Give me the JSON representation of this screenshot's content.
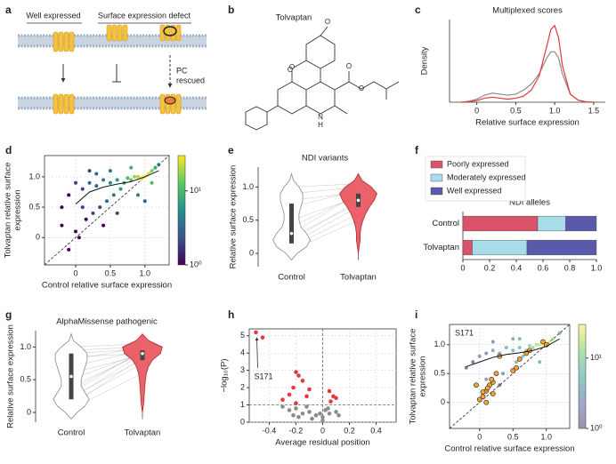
{
  "panel_labels": [
    "a",
    "b",
    "c",
    "d",
    "e",
    "f",
    "g",
    "h",
    "i"
  ],
  "panel_a": {
    "labels": [
      "Well expressed",
      "Surface expression defect"
    ],
    "pc_rescued": [
      "PC",
      "rescued"
    ]
  },
  "panel_b": {
    "title": "Tolvaptan",
    "atoms": [
      "O",
      "O",
      "O",
      "O",
      "O",
      "N",
      "H"
    ]
  },
  "chart_data": [
    {
      "type": "line",
      "title": "Multiplexed scores",
      "xlabel": "Relative surface expression",
      "ylabel": "Density",
      "x": [
        -0.2,
        -0.1,
        0,
        0.1,
        0.2,
        0.3,
        0.4,
        0.5,
        0.6,
        0.7,
        0.8,
        0.9,
        0.95,
        1.0,
        1.05,
        1.1,
        1.2,
        1.3,
        1.4,
        1.5
      ],
      "series": [
        {
          "color": "#8a8a8a",
          "values": [
            0,
            0.05,
            0.15,
            0.35,
            0.45,
            0.4,
            0.35,
            0.4,
            0.6,
            0.9,
            1.4,
            2.2,
            2.5,
            2.5,
            2.2,
            1.4,
            0.4,
            0.1,
            0.02,
            0
          ]
        },
        {
          "color": "#e0383a",
          "values": [
            0,
            0.02,
            0.08,
            0.2,
            0.25,
            0.2,
            0.15,
            0.2,
            0.3,
            0.6,
            1.3,
            2.8,
            3.6,
            3.8,
            3.2,
            1.8,
            0.4,
            0.1,
            0.02,
            0
          ]
        }
      ],
      "xlim": [
        -0.35,
        1.65
      ],
      "ylim": [
        0,
        4.1
      ],
      "xticks": [
        0,
        0.5,
        {
          "value": 1,
          "label": "1.0"
        },
        1.5
      ]
    },
    {
      "type": "scatter",
      "xlabel": "Control relative surface expression",
      "ylabel": [
        "Tolvaptan relative surface",
        "expression"
      ],
      "series": [
        {
          "x": [
            0,
            -0.2,
            0.1,
            0.2,
            0.3,
            0.4,
            0.5,
            0.6,
            0.7,
            0.8,
            0.9,
            1.0,
            1.05,
            0.95,
            1.1,
            1.15,
            0.85,
            0.75,
            0.65,
            0.55,
            0.45,
            0.35,
            0.25,
            0.15,
            0.05,
            -0.1,
            0.2,
            0,
            -0.1,
            0.5,
            0.3,
            1.2,
            1.0,
            0.9,
            0.1,
            0.6,
            0.4,
            -0.2,
            0.8,
            1.1
          ],
          "y": [
            0.1,
            0.5,
            0.8,
            0.9,
            0.85,
            0.95,
            0.9,
            0.95,
            0.9,
            0.95,
            1.0,
            1.0,
            1.05,
            0.98,
            1.1,
            1.15,
            1.0,
            0.98,
            0.8,
            0.7,
            0.6,
            0.5,
            0.4,
            0.3,
            0,
            -0.2,
            1.1,
            0.9,
            0.7,
            1.1,
            1.05,
            1.2,
            0.6,
            0.7,
            0.5,
            0.4,
            0.2,
            0.2,
            1.15,
            0.9
          ],
          "density": [
            1,
            1,
            2,
            3,
            3,
            4,
            5,
            6,
            8,
            12,
            20,
            30,
            25,
            28,
            15,
            8,
            18,
            10,
            6,
            4,
            3,
            2,
            2,
            1,
            1,
            1,
            2,
            2,
            1,
            4,
            3,
            4,
            3,
            4,
            2,
            2,
            1,
            1,
            8,
            10
          ]
        }
      ],
      "trend": {
        "x": [
          0,
          0.2,
          0.4,
          0.6,
          0.8,
          1.0,
          1.2
        ],
        "y": [
          0.55,
          0.75,
          0.83,
          0.88,
          0.92,
          1.0,
          1.1
        ]
      },
      "diagonal": true,
      "grid": true,
      "xlim": [
        -0.45,
        1.35
      ],
      "ylim": [
        -0.45,
        1.35
      ],
      "xticks": [
        0,
        0.5,
        {
          "value": 1,
          "label": "1.0"
        }
      ],
      "yticks": [
        0,
        0.5,
        {
          "value": 1,
          "label": "1.0"
        }
      ],
      "clim": [
        1,
        30
      ],
      "cticks": [
        {
          "value": 1,
          "label": "10⁰"
        },
        {
          "value": 10,
          "label": "10¹"
        }
      ]
    },
    {
      "type": "violin",
      "title": "NDI variants",
      "ylabel": "Relative surface expression",
      "categories": [
        "Control",
        "Tolvaptan"
      ],
      "violins": [
        {
          "color": "#ffffff",
          "edgecolor": "#8a8a8a",
          "y": [
            -0.1,
            0,
            0.1,
            0.2,
            0.3,
            0.4,
            0.5,
            0.6,
            0.7,
            0.8,
            0.9,
            1.0,
            1.1,
            1.2
          ],
          "width": [
            0,
            0.3,
            0.8,
            1.0,
            0.8,
            0.5,
            0.4,
            0.4,
            0.5,
            0.6,
            0.6,
            0.4,
            0.1,
            0
          ],
          "box": [
            0.15,
            0.3,
            0.75
          ]
        },
        {
          "color": "#e8525a",
          "edgecolor": "#b02a30",
          "y": [
            -0.1,
            0,
            0.1,
            0.2,
            0.3,
            0.4,
            0.5,
            0.6,
            0.7,
            0.8,
            0.9,
            1.0,
            1.1,
            1.2
          ],
          "width": [
            0,
            0,
            0.05,
            0.1,
            0.1,
            0.15,
            0.25,
            0.4,
            0.6,
            0.85,
            1.0,
            0.7,
            0.2,
            0
          ],
          "box": [
            0.7,
            0.8,
            0.9
          ]
        }
      ],
      "pairs": [
        [
          0.1,
          0.2,
          0.25,
          0.3,
          0.5,
          0.7,
          0.9,
          0.15,
          0.4,
          0.8,
          1.0,
          0.05
        ],
        [
          0.6,
          0.8,
          0.75,
          0.9,
          0.85,
          0.95,
          1.0,
          0.7,
          0.88,
          0.92,
          1.05,
          0.5
        ]
      ],
      "ylim": [
        -0.2,
        1.3
      ],
      "yticks": [
        0,
        0.5,
        {
          "value": 1,
          "label": "1.0"
        }
      ]
    },
    {
      "type": "barh",
      "title": "NDI alleles",
      "categories": [
        "Control",
        "Tolvaptan"
      ],
      "series": [
        {
          "name": "Poorly expressed",
          "color": "#d9546a",
          "values": [
            0.56,
            0.07
          ]
        },
        {
          "name": "Moderately expressed",
          "color": "#a8dce8",
          "values": [
            0.21,
            0.41
          ]
        },
        {
          "name": "Well expressed",
          "color": "#5a5aac",
          "values": [
            0.23,
            0.52
          ]
        }
      ],
      "xlim": [
        0,
        1
      ],
      "xticks": [
        0,
        0.2,
        0.4,
        0.6,
        0.8,
        {
          "value": 1,
          "label": "1.0"
        }
      ]
    },
    {
      "type": "violin",
      "title": "AlphaMissense pathogenic",
      "ylabel": "Relative surface expression",
      "categories": [
        "Control",
        "Tolvaptan"
      ],
      "violins": [
        {
          "color": "#ffffff",
          "edgecolor": "#8a8a8a",
          "y": [
            -0.1,
            0,
            0.1,
            0.2,
            0.3,
            0.4,
            0.5,
            0.6,
            0.7,
            0.8,
            0.9,
            1.0,
            1.1,
            1.2
          ],
          "width": [
            0,
            0.3,
            0.7,
            0.9,
            0.7,
            0.5,
            0.5,
            0.6,
            0.7,
            0.8,
            0.8,
            0.5,
            0.1,
            0
          ],
          "box": [
            0.2,
            0.55,
            0.9
          ]
        },
        {
          "color": "#e8525a",
          "edgecolor": "#b02a30",
          "y": [
            -0.1,
            0,
            0.1,
            0.2,
            0.3,
            0.4,
            0.5,
            0.6,
            0.7,
            0.8,
            0.9,
            1.0,
            1.1,
            1.2
          ],
          "width": [
            0,
            0,
            0.05,
            0.08,
            0.1,
            0.12,
            0.15,
            0.2,
            0.3,
            0.5,
            0.9,
            1.0,
            0.3,
            0
          ],
          "box": [
            0.8,
            0.9,
            0.95
          ]
        }
      ],
      "pairs": [
        [
          0.05,
          0.1,
          0.2,
          0.25,
          0.3,
          0.4,
          0.5,
          0.6,
          0.7,
          0.8,
          0.9,
          1.0,
          0.15,
          0.35,
          0.85,
          0.95
        ],
        [
          0.6,
          0.85,
          0.9,
          0.8,
          0.95,
          0.9,
          0.92,
          0.88,
          0.95,
          1.0,
          0.97,
          1.05,
          0.75,
          0.93,
          0.9,
          1.0
        ]
      ],
      "ylim": [
        -0.15,
        1.25
      ],
      "yticks": [
        0,
        0.5,
        {
          "value": 1,
          "label": "1.0"
        }
      ]
    },
    {
      "type": "volcano",
      "xlabel": "Average residual position",
      "ylabel": "−log₁₀(P)",
      "annotation": "S171",
      "series": [
        {
          "color": "#8c8c8c",
          "x": [
            -0.3,
            -0.25,
            -0.2,
            -0.15,
            -0.1,
            -0.05,
            0,
            0.02,
            0.05,
            0.1,
            -0.18,
            -0.08,
            0,
            0.12,
            -0.12,
            -0.22,
            0.04,
            -0.02
          ],
          "y": [
            0.9,
            0.7,
            0.8,
            0.5,
            0.6,
            0.4,
            0.3,
            0.7,
            0.5,
            0.6,
            0.3,
            0.2,
            0.1,
            0.4,
            0.9,
            0.4,
            0.8,
            0.5
          ]
        },
        {
          "color": "#e8383e",
          "x": [
            -0.5,
            -0.45,
            -0.2,
            -0.18,
            -0.15,
            -0.22,
            -0.1,
            -0.25,
            -0.12,
            0.05,
            0.08,
            0.1,
            0.06,
            -0.3,
            -0.2
          ],
          "y": [
            5.2,
            4.9,
            2.9,
            2.7,
            2.4,
            2,
            1.9,
            1.6,
            1.5,
            1.8,
            1.5,
            1.4,
            1.2,
            1.3,
            1.1
          ]
        }
      ],
      "threshold": 1,
      "vline": 0,
      "grid": true,
      "xlim": [
        -0.55,
        0.55
      ],
      "ylim": [
        0,
        5.4
      ],
      "xticks": [
        -0.4,
        -0.2,
        0,
        0.2,
        0.4
      ],
      "yticks": [
        0,
        1,
        2,
        3,
        4,
        5
      ]
    },
    {
      "type": "scatter",
      "xlabel": "Control relative surface expression",
      "ylabel": [
        "Tolvaptan relative surface",
        "expression"
      ],
      "annotation": "S171",
      "series": [
        {
          "alpha": 0.55,
          "x": [
            0,
            0.1,
            0.2,
            0.3,
            0.4,
            0.5,
            0.6,
            0.7,
            0.8,
            0.9,
            1.0,
            1.05,
            0.95,
            1.1,
            0.85,
            0.75,
            0.65,
            0.55,
            0.35,
            0.2,
            -0.1,
            0.5,
            1.2,
            0.9,
            0.1,
            -0.2,
            0.3,
            0.6
          ],
          "y": [
            0.8,
            0.85,
            0.9,
            0.85,
            0.95,
            0.9,
            0.95,
            0.9,
            0.95,
            1.0,
            1.0,
            1.05,
            0.98,
            1.1,
            1.0,
            0.98,
            0.8,
            0.7,
            0.5,
            1.05,
            0.7,
            1.1,
            1.2,
            0.7,
            0.4,
            0.6,
            0.3,
            1.1
          ],
          "density": [
            2,
            2,
            3,
            3,
            4,
            5,
            6,
            8,
            12,
            20,
            30,
            25,
            28,
            15,
            18,
            10,
            6,
            4,
            2,
            2,
            1,
            4,
            4,
            4,
            2,
            1,
            1,
            4
          ]
        },
        {
          "color": "#f2a33a",
          "edgecolor": "#222222",
          "x": [
            0.05,
            0.1,
            0.15,
            0.2,
            0,
            0.12,
            0.25,
            0.3,
            0.5,
            0.55,
            0.7,
            0.75,
            0.95,
            1,
            0.1,
            0.2,
            0.05,
            0.18,
            0.6,
            -0.05
          ],
          "y": [
            0.1,
            0.2,
            0.3,
            0.35,
            0.05,
            0.25,
            0.5,
            0.8,
            0.55,
            0.6,
            0.85,
            0.9,
            1.05,
            1,
            0,
            0.15,
            0.18,
            0.4,
            0.75,
            0.3
          ]
        }
      ],
      "trend": {
        "x": [
          -0.2,
          0,
          0.2,
          0.4,
          0.6,
          0.8,
          1.0,
          1.2
        ],
        "y": [
          0.62,
          0.7,
          0.78,
          0.83,
          0.86,
          0.9,
          0.97,
          1.1
        ]
      },
      "diagonal": true,
      "grid": true,
      "xlim": [
        -0.45,
        1.35
      ],
      "ylim": [
        -0.45,
        1.35
      ],
      "xticks": [
        0,
        0.5,
        {
          "value": 1,
          "label": "1.0"
        }
      ],
      "yticks": [
        0,
        0.5,
        {
          "value": 1,
          "label": "1.0"
        }
      ],
      "clim": [
        1,
        30
      ],
      "cticks": [
        {
          "value": 1,
          "label": "10⁰"
        },
        {
          "value": 10,
          "label": "10¹"
        }
      ]
    }
  ]
}
